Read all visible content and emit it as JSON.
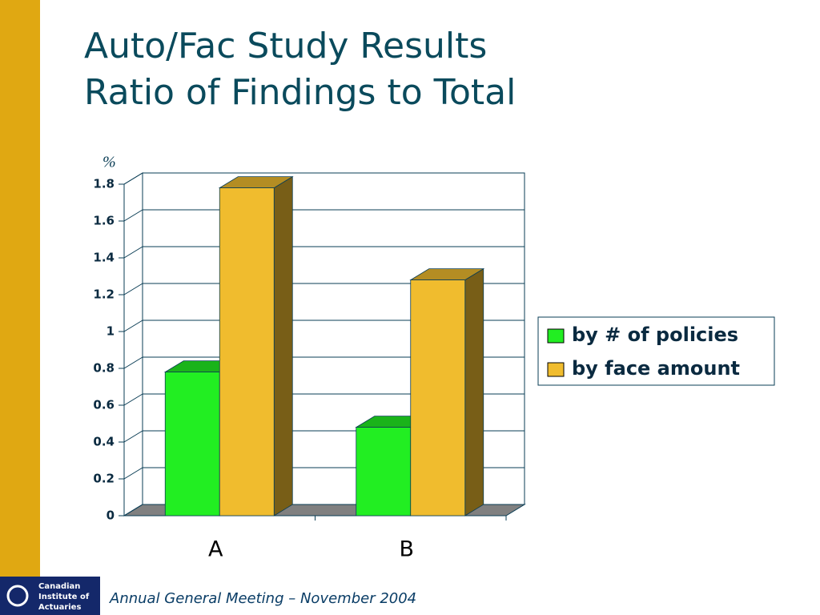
{
  "chart_data": {
    "type": "bar3d",
    "title": "Auto/Fac Study Results",
    "subtitle": "Ratio of Findings to Total",
    "y_label": "%",
    "categories": [
      "A",
      "B"
    ],
    "series": [
      {
        "name": "by # of policies",
        "color": "#22ee22",
        "values": [
          0.78,
          0.48
        ]
      },
      {
        "name": "by face amount",
        "color": "#f0bc2e",
        "values": [
          1.78,
          1.28
        ]
      }
    ],
    "ylim": [
      0,
      1.8
    ],
    "yticks": [
      0,
      0.2,
      0.4,
      0.6,
      0.8,
      1,
      1.2,
      1.4,
      1.6,
      1.8
    ],
    "grid": true,
    "legend": "right"
  },
  "footer": {
    "text": "Annual General Meeting – November 2004",
    "logo": [
      "Canadian",
      "Institute of",
      "Actuaries"
    ]
  }
}
